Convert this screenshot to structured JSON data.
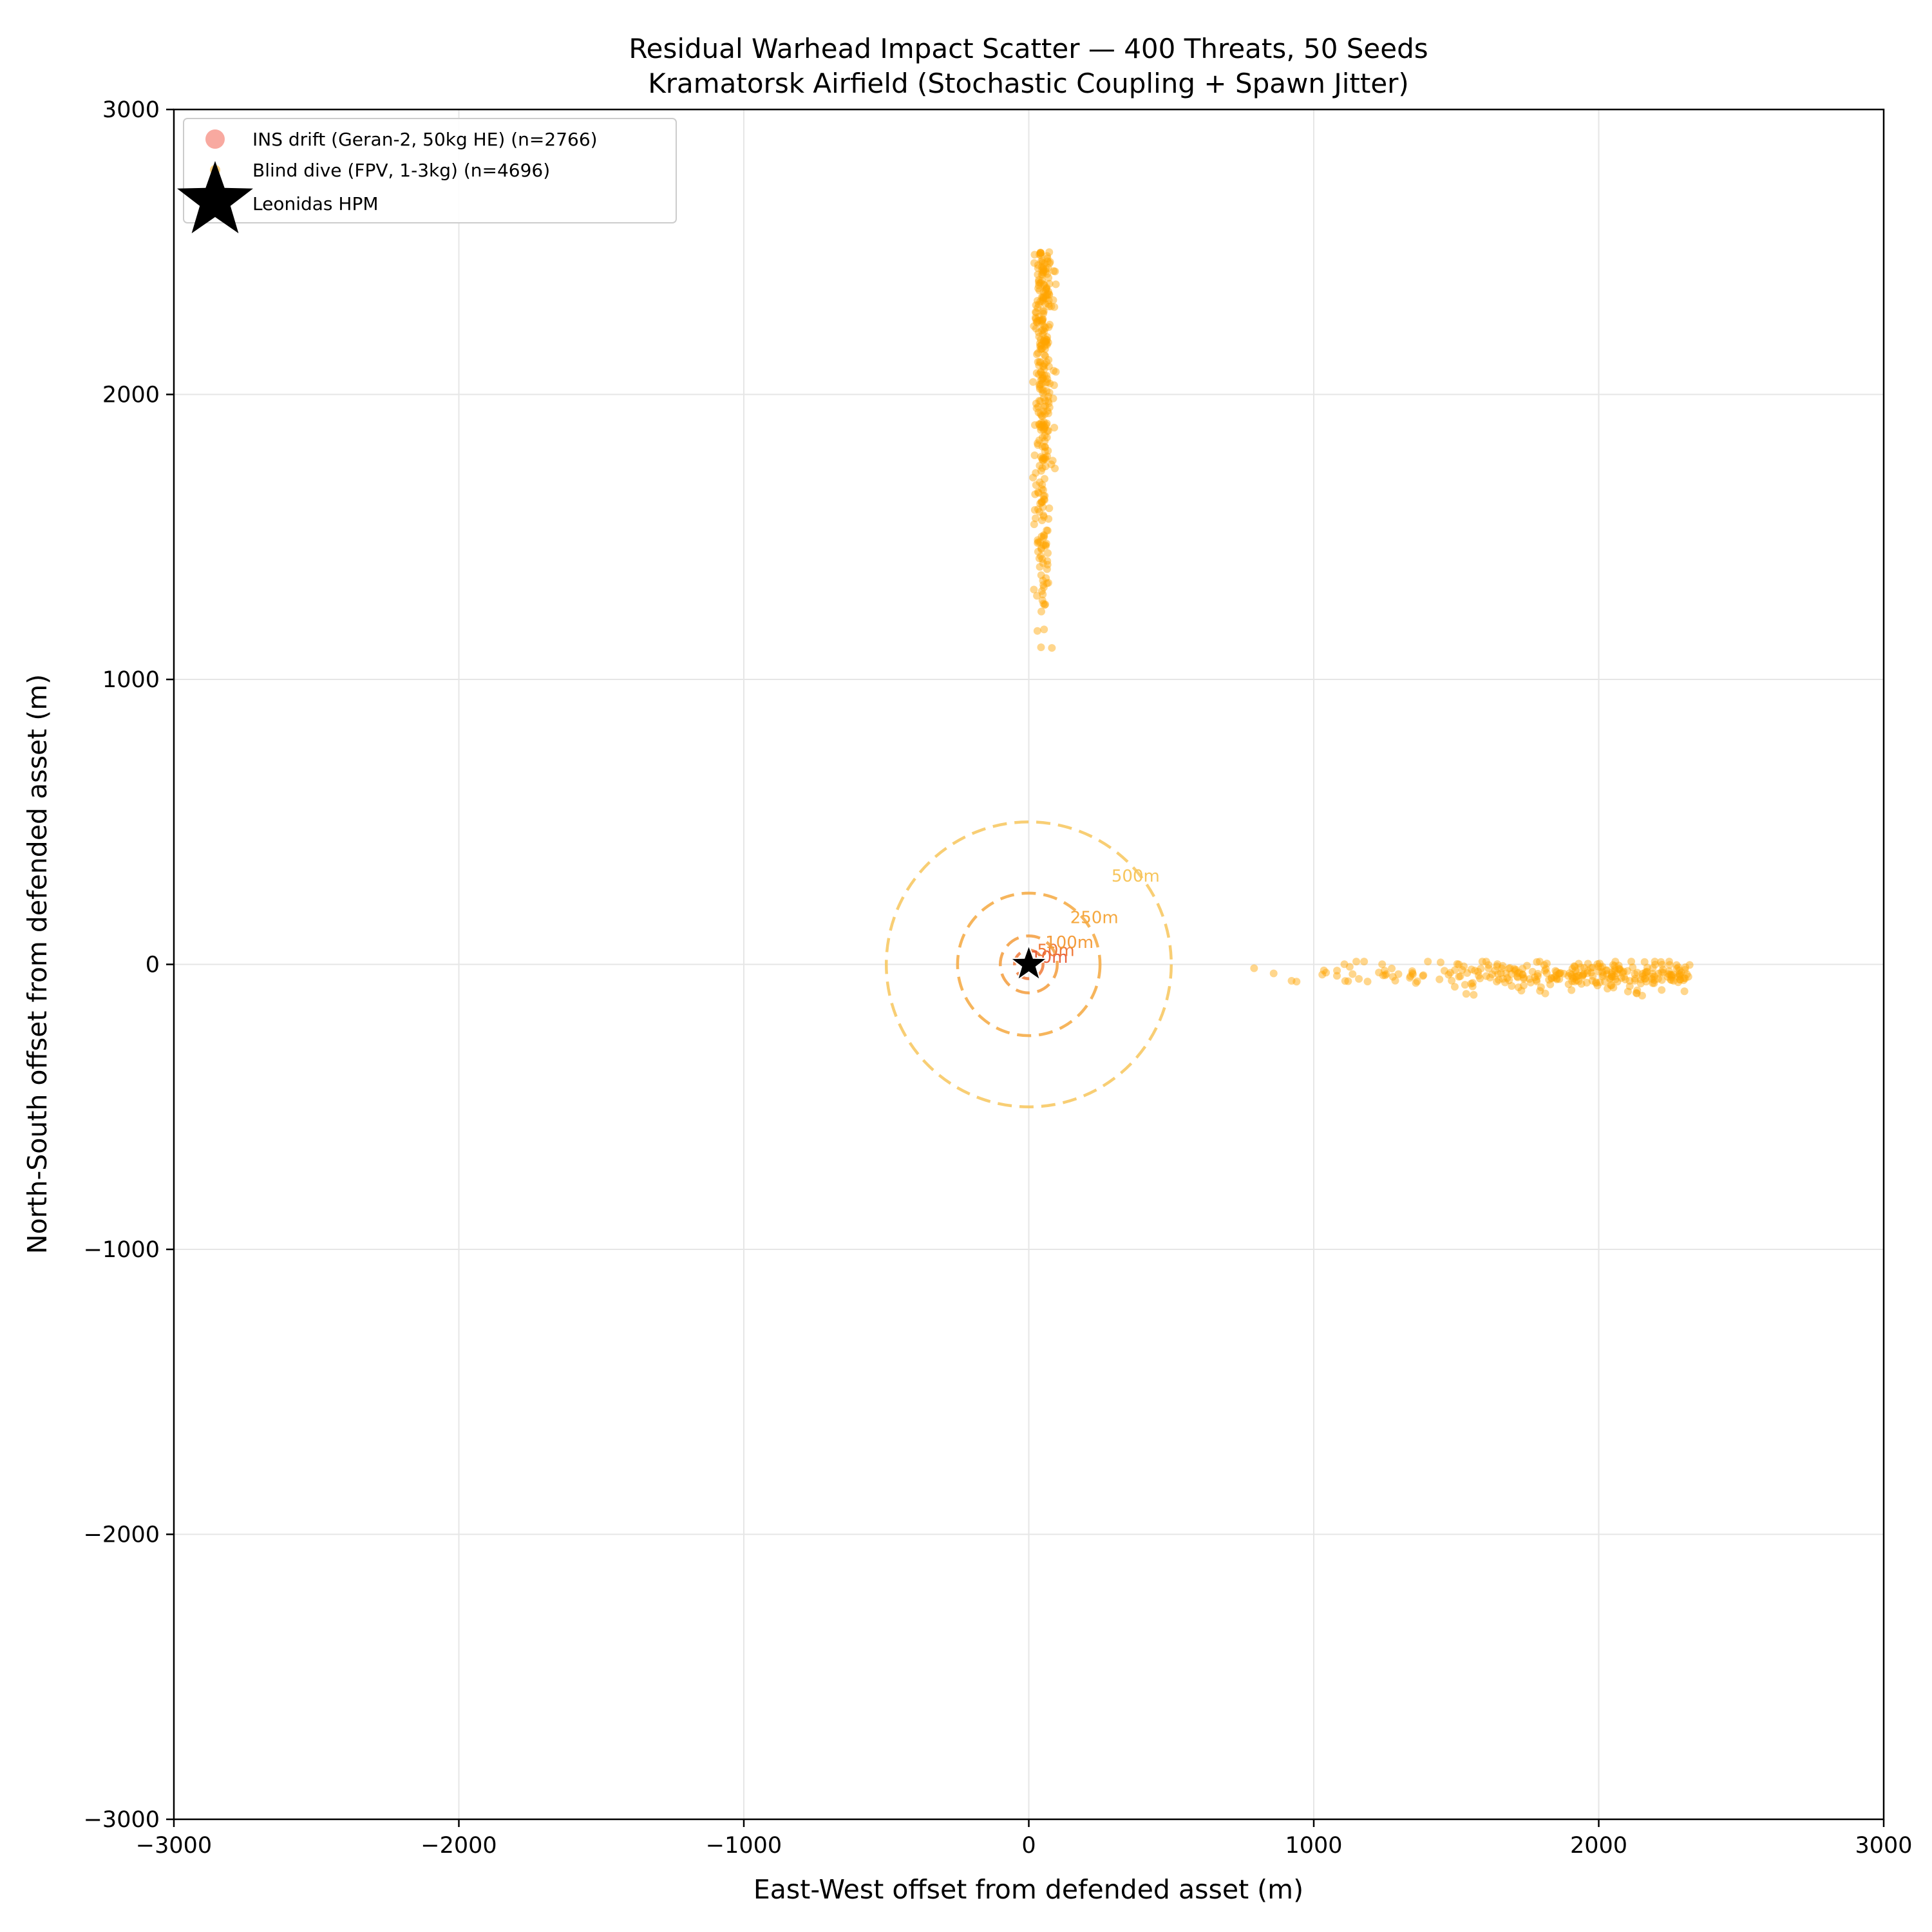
{
  "chart_data": {
    "type": "scatter",
    "title": "Residual Warhead Impact Scatter — 400 Threats, 50 Seeds",
    "subtitle": "Kramatorsk Airfield (Stochastic Coupling + Spawn Jitter)",
    "xlabel": "East-West offset from defended asset (m)",
    "ylabel": "North-South offset from defended asset (m)",
    "xlim": [
      -3000,
      3000
    ],
    "ylim": [
      -3000,
      3000
    ],
    "xticks": [
      -3000,
      -2000,
      -1000,
      0,
      1000,
      2000,
      3000
    ],
    "yticks": [
      -3000,
      -2000,
      -1000,
      0,
      1000,
      2000,
      3000
    ],
    "xtick_labels": [
      "−3000",
      "−2000",
      "−1000",
      "0",
      "1000",
      "2000",
      "3000"
    ],
    "ytick_labels": [
      "−3000",
      "−2000",
      "−1000",
      "0",
      "1000",
      "2000",
      "3000"
    ],
    "grid": true,
    "legend_position": "top-left",
    "legend": [
      {
        "label": "INS drift (Geran-2, 50kg HE) (n=2766)",
        "marker": "circle",
        "color": "#f8a9a0"
      },
      {
        "label": "Blind dive (FPV, 1-3kg) (n=4696)",
        "marker": "circle",
        "color": "#ffa500"
      },
      {
        "label": "Leonidas HPM",
        "marker": "star",
        "color": "#000000"
      }
    ],
    "series": [
      {
        "name": "Blind dive (FPV, 1-3kg) (n=4696)",
        "color": "#ffa500",
        "alpha": 0.45,
        "clusters": [
          {
            "x_range": [
              15,
              95
            ],
            "y_range": [
              1040,
              2500
            ],
            "count": 320,
            "center": [
              50,
              2000
            ]
          },
          {
            "x_range": [
              730,
              2330
            ],
            "y_range": [
              -120,
              10
            ],
            "count": 300,
            "center": [
              1900,
              -40
            ]
          }
        ]
      },
      {
        "name": "Leonidas HPM",
        "color": "#000000",
        "marker": "star",
        "points": [
          {
            "x": 0,
            "y": 0
          }
        ]
      }
    ],
    "range_rings": [
      {
        "radius": 10,
        "label": "10m",
        "color": "#e8603c"
      },
      {
        "radius": 50,
        "label": "50m",
        "color": "#f07a3a"
      },
      {
        "radius": 100,
        "label": "100m",
        "color": "#f39c3c"
      },
      {
        "radius": 250,
        "label": "250m",
        "color": "#f5a83f"
      },
      {
        "radius": 500,
        "label": "500m",
        "color": "#f7c55c"
      }
    ]
  }
}
